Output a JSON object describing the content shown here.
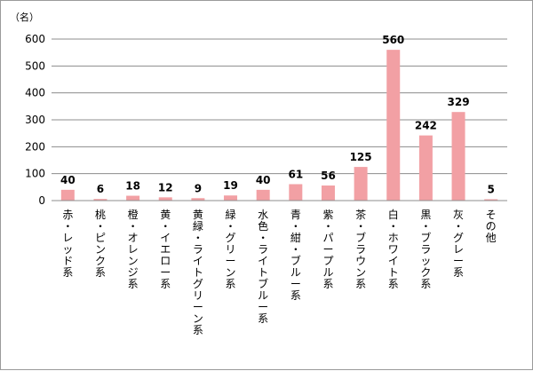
{
  "chart_data": {
    "type": "bar",
    "unit_label": "（名）",
    "categories": [
      "赤・レッド系",
      "桃・ピンク系",
      "橙・オレンジ系",
      "黄・イエロー系",
      "黄緑・ライトグリーン系",
      "緑・グリーン系",
      "水色・ライトブルー系",
      "青・紺・ブルー系",
      "紫・パープル系",
      "茶・ブラウン系",
      "白・ホワイト系",
      "黒・ブラック系",
      "灰・グレー系",
      "その他"
    ],
    "values": [
      40,
      6,
      18,
      12,
      9,
      19,
      40,
      61,
      56,
      125,
      560,
      242,
      329,
      5
    ],
    "ylim": [
      0,
      600
    ],
    "yticks": [
      0,
      100,
      200,
      300,
      400,
      500,
      600
    ],
    "grid": true,
    "bar_color": "#f2a0a4",
    "grid_color": "#8c8c8c"
  }
}
